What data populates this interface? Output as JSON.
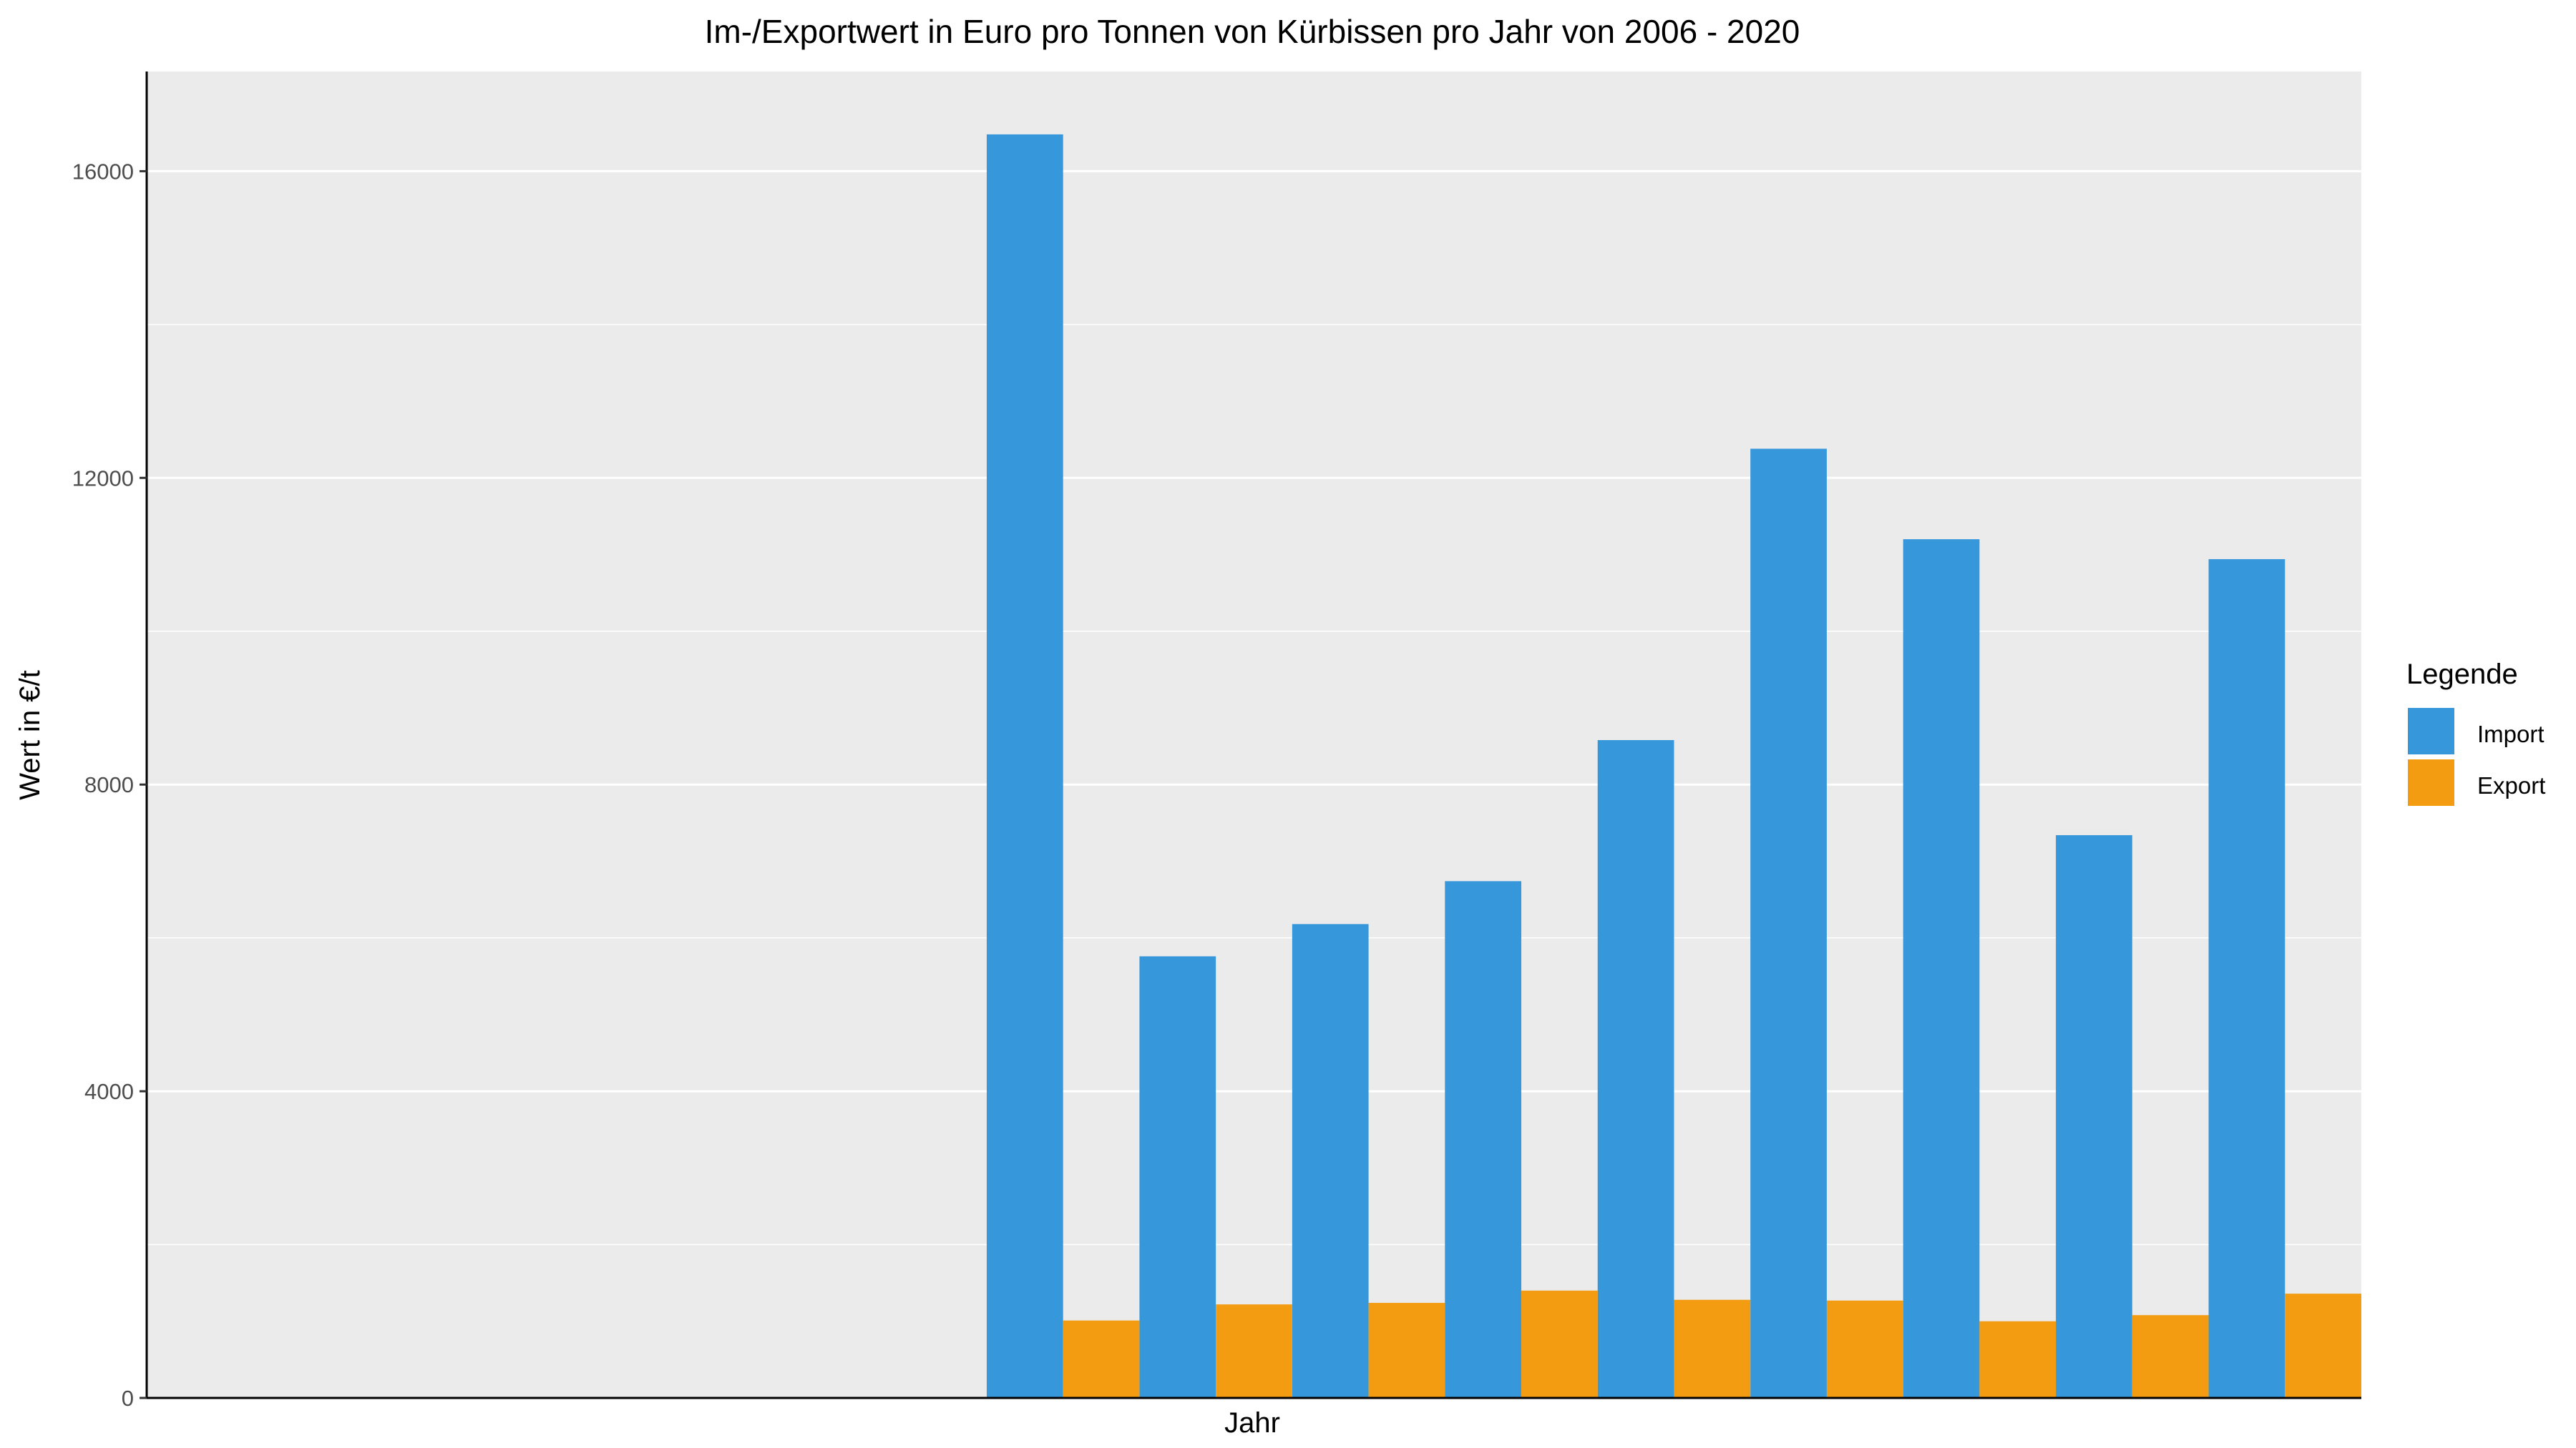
{
  "chart_data": {
    "type": "bar",
    "title": "Im-/Exportwert in Euro pro Tonnen von Kürbissen pro Jahr von 2006 - 2020",
    "xlabel": "Jahr",
    "ylabel": "Wert in €/t",
    "ylim": [
      0,
      17300
    ],
    "yticks": [
      "0",
      "4000",
      "8000",
      "12000",
      "16000"
    ],
    "grid": true,
    "legend": {
      "title": "Legende",
      "position": "right",
      "entries": [
        "Import",
        "Export"
      ]
    },
    "total_slots": 15,
    "first_drawn_slot": 6,
    "series": [
      {
        "name": "Import",
        "color": "#3797db",
        "values": [
          16480,
          5760,
          6180,
          6740,
          8580,
          12380,
          11200,
          7340,
          10940
        ]
      },
      {
        "name": "Export",
        "color": "#f39c12",
        "values": [
          1010,
          1220,
          1240,
          1400,
          1280,
          1270,
          1000,
          1080,
          1360
        ]
      }
    ]
  }
}
